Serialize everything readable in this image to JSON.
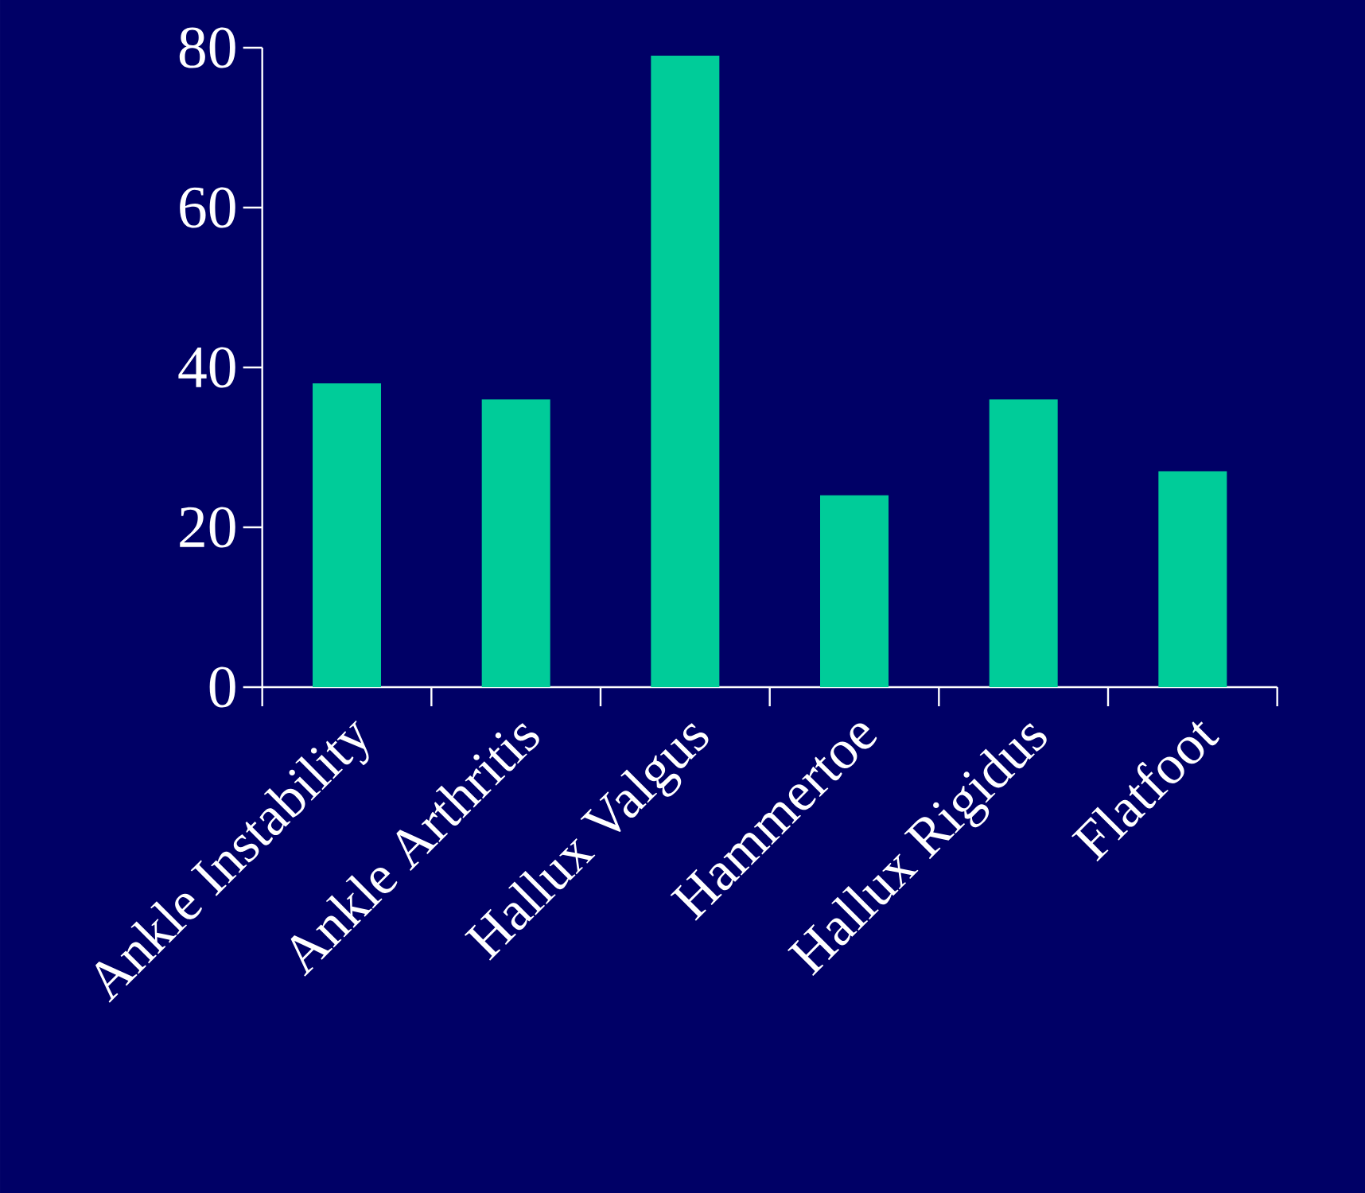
{
  "chart_data": {
    "type": "bar",
    "categories": [
      "Ankle Instability",
      "Ankle Arthritis",
      "Hallux Valgus",
      "Hammertoe",
      "Hallux Rigidus",
      "Flatfoot"
    ],
    "values": [
      38,
      36,
      79,
      24,
      36,
      27
    ],
    "color": "#00cc99",
    "ylim": [
      0,
      80
    ],
    "yticks": [
      0,
      20,
      40,
      60,
      80
    ],
    "grid": false
  }
}
